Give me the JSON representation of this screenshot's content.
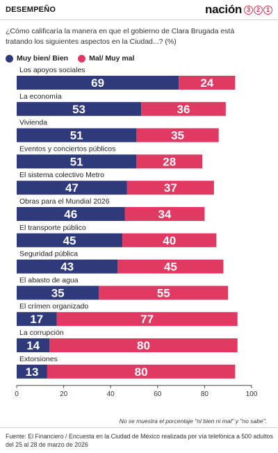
{
  "header": {
    "section": "DESEMPEÑO",
    "logo_word": "nación",
    "logo_digits": [
      "3",
      "2",
      "1"
    ]
  },
  "question": "¿Cómo calificaría la manera en que el gobierno de Clara Brugada está tratando los siguientes aspectos en la Ciudad...? (%)",
  "note": "No se muestra el porcentaje \"ni bien ni mal\" y \"no sabe\".",
  "source": "Fuente: El Financiero /  Encuesta en la Ciudad de México realizada por vía telefónica a 500 adultos del 25 al 28 de marzo de 2026",
  "chart_data": {
    "type": "bar",
    "orientation": "horizontal",
    "stacked": true,
    "categories": [
      "Los apoyos sociales",
      "La economía",
      "Vivienda",
      "Eventos y conciertos públicos",
      "El sistema colectivo Metro",
      "Obras para el Mundial 2026",
      "El transporte público",
      "Seguridad pública",
      "El abasto de agua",
      "El crímen organizado",
      "La corrupción",
      "Extorsiones"
    ],
    "series": [
      {
        "name": "Muy bien/ Bien",
        "color": "#2f3a7c",
        "values": [
          69,
          53,
          51,
          51,
          47,
          46,
          45,
          43,
          35,
          17,
          14,
          13
        ]
      },
      {
        "name": "Mal/ Muy mal",
        "color": "#e03a63",
        "values": [
          24,
          36,
          35,
          28,
          37,
          34,
          40,
          45,
          55,
          77,
          80,
          80
        ]
      }
    ],
    "xlim": [
      0,
      100
    ],
    "xticks": [
      0,
      20,
      40,
      60,
      80,
      100
    ],
    "grid": false,
    "legend_position": "top-left"
  }
}
